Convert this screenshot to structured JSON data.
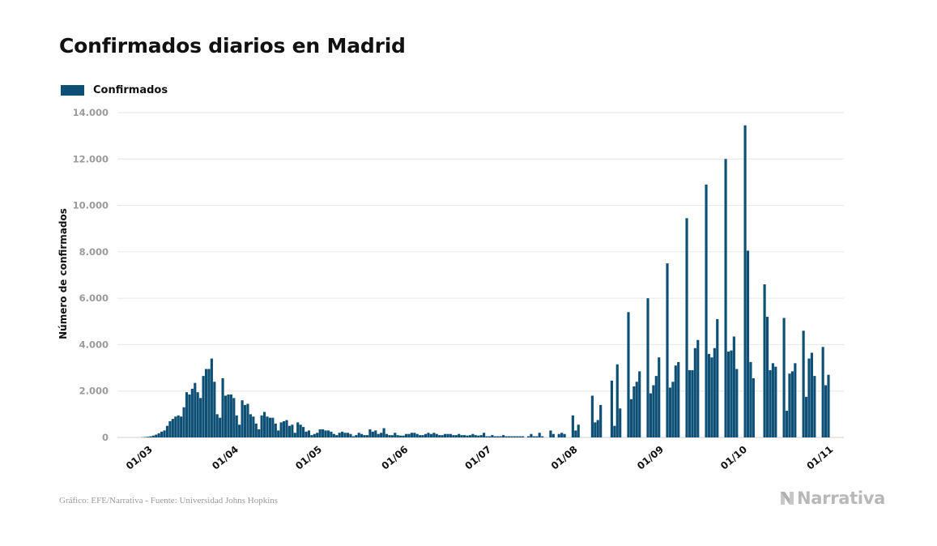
{
  "title": "Confirmados diarios en Madrid",
  "legend": {
    "label": "Confirmados",
    "color": "#0e4f75"
  },
  "footer": {
    "source": "Gráfico: EFE/Narrativa - Fuente: Universidad Johns Hopkins",
    "brand": "Narrativa"
  },
  "chart_data": {
    "type": "bar",
    "title": "Confirmados diarios en Madrid",
    "ylabel": "Número de confirmados",
    "xlabel": "",
    "ylim": [
      0,
      14000
    ],
    "yticks": [
      0,
      2000,
      4000,
      6000,
      8000,
      10000,
      12000,
      14000
    ],
    "ytick_labels": [
      "0",
      "2.000",
      "4.000",
      "6.000",
      "8.000",
      "10.000",
      "12.000",
      "14.000"
    ],
    "xtick_labels": [
      "01/03",
      "01/04",
      "01/05",
      "01/06",
      "01/07",
      "01/08",
      "01/09",
      "01/10",
      "01/11"
    ],
    "x_start": "2020-02-21",
    "x_end": "2020-11-06",
    "grid": true,
    "series": [
      {
        "name": "Confirmados",
        "color": "#0e4f75",
        "values": [
          0,
          0,
          0,
          0,
          0,
          0,
          0,
          10,
          20,
          30,
          50,
          80,
          120,
          180,
          250,
          300,
          500,
          700,
          800,
          900,
          950,
          900,
          1300,
          1950,
          1850,
          2100,
          2350,
          1950,
          1700,
          2650,
          2950,
          2950,
          3400,
          2400,
          1000,
          850,
          2550,
          1800,
          1850,
          1850,
          1700,
          950,
          550,
          1600,
          1400,
          1450,
          1000,
          900,
          600,
          350,
          950,
          1100,
          900,
          850,
          850,
          600,
          300,
          650,
          700,
          750,
          500,
          550,
          200,
          650,
          550,
          450,
          250,
          300,
          100,
          150,
          200,
          350,
          350,
          300,
          300,
          250,
          150,
          100,
          200,
          250,
          200,
          200,
          150,
          50,
          100,
          200,
          150,
          100,
          100,
          350,
          250,
          300,
          150,
          200,
          400,
          150,
          100,
          100,
          200,
          100,
          80,
          80,
          150,
          150,
          200,
          200,
          150,
          100,
          100,
          150,
          200,
          150,
          200,
          150,
          100,
          100,
          150,
          150,
          150,
          100,
          100,
          150,
          100,
          100,
          80,
          100,
          150,
          100,
          80,
          100,
          200,
          50,
          50,
          100,
          50,
          50,
          50,
          100,
          50,
          50,
          50,
          50,
          50,
          50,
          50,
          0,
          50,
          150,
          50,
          50,
          200,
          50,
          0,
          0,
          300,
          150,
          0,
          150,
          200,
          150,
          0,
          0,
          950,
          300,
          550,
          0,
          0,
          0,
          0,
          1800,
          650,
          750,
          1400,
          0,
          0,
          0,
          2450,
          500,
          3150,
          1250,
          0,
          0,
          5400,
          1650,
          2200,
          2400,
          2850,
          0,
          0,
          6000,
          1900,
          2250,
          2650,
          3450,
          0,
          0,
          7500,
          2150,
          2400,
          3100,
          3250,
          0,
          0,
          9450,
          2900,
          2900,
          3850,
          4200,
          0,
          0,
          10900,
          3600,
          3450,
          3850,
          5100,
          0,
          0,
          12000,
          3700,
          3750,
          4350,
          2950,
          0,
          0,
          13450,
          8050,
          3250,
          2550,
          0,
          0,
          0,
          6600,
          5200,
          2900,
          3200,
          3050,
          0,
          0,
          5150,
          1150,
          2750,
          2850,
          3200,
          0,
          0,
          4600,
          1750,
          3400,
          3650,
          2650,
          0,
          0,
          3900,
          2250,
          2700,
          0,
          0,
          0
        ]
      }
    ],
    "footer_source": "Gráfico: EFE/Narrativa - Fuente: Universidad Johns Hopkins"
  }
}
